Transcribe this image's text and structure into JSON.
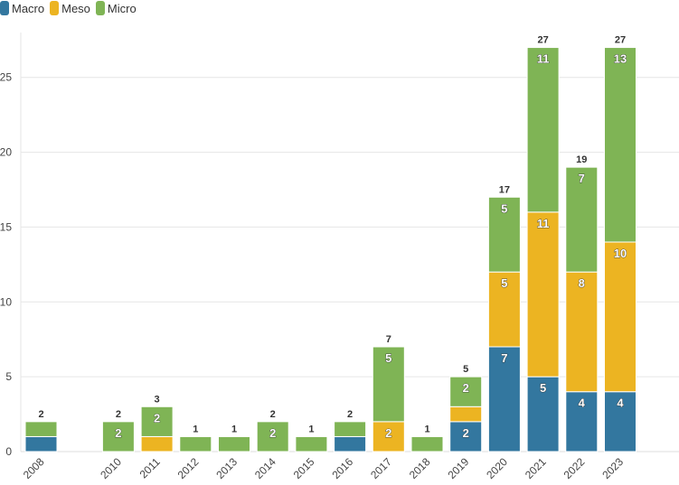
{
  "chart_data": {
    "type": "bar",
    "stacked": true,
    "title": "",
    "xlabel": "",
    "ylabel": "",
    "ylim": [
      0,
      28
    ],
    "yticks": [
      0,
      5,
      10,
      15,
      20,
      25
    ],
    "categories": [
      "2008",
      "2010",
      "2011",
      "2012",
      "2013",
      "2014",
      "2015",
      "2016",
      "2017",
      "2018",
      "2019",
      "2020",
      "2021",
      "2022",
      "2023"
    ],
    "x_positions": [
      2008,
      2010,
      2011,
      2012,
      2013,
      2014,
      2015,
      2016,
      2017,
      2018,
      2019,
      2020,
      2021,
      2022,
      2023
    ],
    "totals": [
      2,
      2,
      3,
      1,
      1,
      2,
      1,
      2,
      7,
      1,
      5,
      17,
      27,
      19,
      27
    ],
    "legend_position": "top-left",
    "series": [
      {
        "name": "Macro",
        "color": "#33779f",
        "values": [
          1,
          0,
          0,
          0,
          0,
          0,
          0,
          1,
          0,
          0,
          2,
          7,
          5,
          4,
          4
        ]
      },
      {
        "name": "Meso",
        "color": "#ecb422",
        "values": [
          0,
          0,
          1,
          0,
          0,
          0,
          0,
          0,
          2,
          0,
          1,
          5,
          11,
          8,
          10
        ]
      },
      {
        "name": "Micro",
        "color": "#7fb455",
        "values": [
          1,
          2,
          2,
          1,
          1,
          2,
          1,
          1,
          5,
          1,
          2,
          5,
          11,
          7,
          13
        ]
      }
    ],
    "segment_labels_shown": {
      "Macro": [
        false,
        false,
        false,
        false,
        false,
        false,
        false,
        false,
        false,
        false,
        true,
        true,
        true,
        true,
        true
      ],
      "Meso": [
        false,
        false,
        false,
        false,
        false,
        false,
        false,
        false,
        true,
        false,
        false,
        true,
        true,
        true,
        true
      ],
      "Micro": [
        false,
        true,
        true,
        false,
        false,
        true,
        false,
        false,
        true,
        false,
        true,
        true,
        true,
        true,
        true
      ]
    }
  }
}
